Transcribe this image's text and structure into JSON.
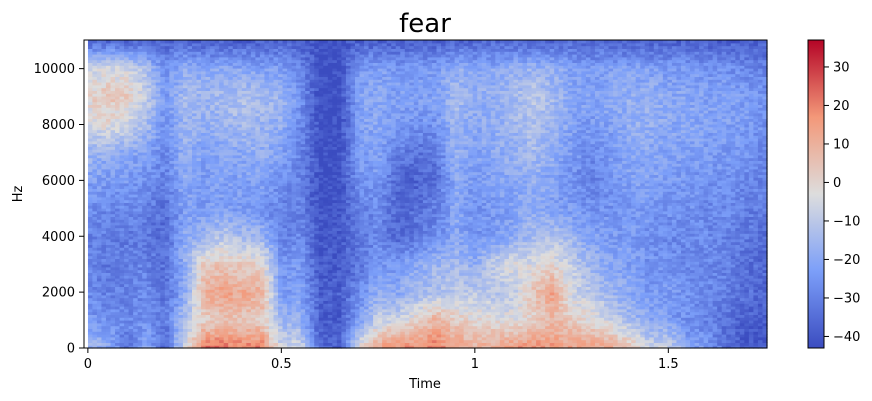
{
  "chart_data": [
    {
      "type": "heatmap",
      "subtype": "spectrogram",
      "title": "fear",
      "xlabel": "Time",
      "ylabel": "Hz",
      "xlim": [
        -0.01,
        1.755
      ],
      "ylim": [
        0,
        11025
      ],
      "x_ticks": [
        0,
        0.5,
        1,
        1.5
      ],
      "x_tick_labels": [
        "0",
        "0.5",
        "1",
        "1.5"
      ],
      "y_ticks": [
        0,
        2000,
        4000,
        6000,
        8000,
        10000
      ],
      "y_tick_labels": [
        "0",
        "2000",
        "4000",
        "6000",
        "8000",
        "10000"
      ],
      "colormap": "coolwarm",
      "colors": {
        "low": "#3b4cc0",
        "mid": "#dddddd",
        "high": "#b40426"
      },
      "time_columns": [
        0.0,
        0.05,
        0.1,
        0.15,
        0.2,
        0.25,
        0.3,
        0.35,
        0.4,
        0.45,
        0.5,
        0.55,
        0.6,
        0.65,
        0.7,
        0.75,
        0.8,
        0.85,
        0.9,
        0.95,
        1.0,
        1.05,
        1.1,
        1.15,
        1.2,
        1.25,
        1.3,
        1.35,
        1.4,
        1.45,
        1.5,
        1.55,
        1.6,
        1.65,
        1.7,
        1.75
      ],
      "freq_rows": [
        0,
        1000,
        2000,
        3000,
        4000,
        5000,
        6000,
        7000,
        8000,
        9000,
        10000,
        11000
      ],
      "values_db": [
        [
          -14,
          -18,
          -34,
          -20,
          -36,
          -5,
          24,
          22,
          20,
          20,
          -6,
          -5,
          -36,
          -38,
          -2,
          14,
          18,
          18,
          20,
          14,
          10,
          12,
          16,
          18,
          16,
          14,
          14,
          12,
          6,
          -6,
          -6,
          -20,
          -24,
          -34,
          -40,
          -40
        ],
        [
          -24,
          -26,
          -28,
          -26,
          -32,
          -12,
          0,
          4,
          4,
          2,
          -16,
          -18,
          -38,
          -40,
          -22,
          -8,
          -6,
          0,
          10,
          2,
          0,
          -2,
          -4,
          0,
          8,
          2,
          -2,
          -6,
          -14,
          -20,
          -22,
          -28,
          -30,
          -34,
          -38,
          -40
        ],
        [
          -28,
          -30,
          -30,
          -28,
          -34,
          -20,
          10,
          14,
          12,
          10,
          -24,
          -22,
          -38,
          -38,
          -28,
          -18,
          -20,
          -14,
          -12,
          -10,
          -10,
          -12,
          -8,
          4,
          14,
          -6,
          -10,
          -16,
          -20,
          -24,
          -24,
          -26,
          -28,
          -30,
          -34,
          -36
        ],
        [
          -30,
          -32,
          -30,
          -30,
          -34,
          -18,
          2,
          4,
          2,
          0,
          -26,
          -24,
          -40,
          -40,
          -32,
          -26,
          -24,
          -20,
          -16,
          -14,
          -18,
          -8,
          -4,
          -4,
          0,
          -8,
          -16,
          -20,
          -22,
          -26,
          -26,
          -28,
          -28,
          -30,
          -34,
          -36
        ],
        [
          -30,
          -30,
          -32,
          -32,
          -36,
          -20,
          -16,
          -10,
          -14,
          -16,
          -30,
          -28,
          -40,
          -40,
          -32,
          -28,
          -36,
          -32,
          -28,
          -20,
          -26,
          -24,
          -20,
          -14,
          -12,
          -16,
          -22,
          -24,
          -24,
          -26,
          -28,
          -28,
          -28,
          -30,
          -32,
          -34
        ],
        [
          -28,
          -28,
          -28,
          -30,
          -34,
          -22,
          -24,
          -22,
          -24,
          -26,
          -30,
          -30,
          -42,
          -42,
          -30,
          -28,
          -36,
          -34,
          -30,
          -20,
          -26,
          -24,
          -22,
          -18,
          -22,
          -24,
          -26,
          -26,
          -24,
          -24,
          -26,
          -26,
          -28,
          -28,
          -30,
          -32
        ],
        [
          -22,
          -24,
          -24,
          -26,
          -30,
          -20,
          -24,
          -22,
          -22,
          -22,
          -26,
          -30,
          -42,
          -42,
          -26,
          -24,
          -36,
          -38,
          -34,
          -20,
          -24,
          -22,
          -20,
          -18,
          -22,
          -26,
          -30,
          -26,
          -22,
          -22,
          -24,
          -24,
          -26,
          -26,
          -28,
          -30
        ],
        [
          -16,
          -18,
          -20,
          -22,
          -28,
          -18,
          -22,
          -20,
          -20,
          -18,
          -22,
          -30,
          -42,
          -42,
          -24,
          -22,
          -30,
          -34,
          -32,
          -18,
          -22,
          -20,
          -18,
          -14,
          -18,
          -24,
          -28,
          -24,
          -20,
          -20,
          -22,
          -22,
          -24,
          -24,
          -26,
          -28
        ],
        [
          -6,
          -2,
          -6,
          -14,
          -26,
          -16,
          -18,
          -16,
          -14,
          -16,
          -18,
          -28,
          -42,
          -42,
          -22,
          -20,
          -24,
          -26,
          -26,
          -16,
          -20,
          -18,
          -16,
          -12,
          -16,
          -22,
          -24,
          -22,
          -18,
          -18,
          -20,
          -20,
          -22,
          -22,
          -24,
          -26
        ],
        [
          0,
          4,
          2,
          -8,
          -24,
          -14,
          -16,
          -14,
          -12,
          -14,
          -16,
          -26,
          -42,
          -42,
          -22,
          -20,
          -22,
          -22,
          -22,
          -14,
          -18,
          -18,
          -14,
          -10,
          -14,
          -20,
          -22,
          -20,
          -18,
          -18,
          -20,
          -20,
          -22,
          -22,
          -24,
          -26
        ],
        [
          -8,
          -4,
          -6,
          -12,
          -26,
          -18,
          -20,
          -20,
          -20,
          -22,
          -22,
          -28,
          -42,
          -42,
          -24,
          -22,
          -24,
          -24,
          -24,
          -18,
          -20,
          -20,
          -18,
          -16,
          -18,
          -22,
          -24,
          -22,
          -22,
          -22,
          -24,
          -24,
          -26,
          -26,
          -28,
          -30
        ],
        [
          -36,
          -36,
          -36,
          -36,
          -38,
          -36,
          -38,
          -38,
          -38,
          -38,
          -38,
          -38,
          -42,
          -42,
          -38,
          -38,
          -38,
          -38,
          -38,
          -36,
          -36,
          -36,
          -36,
          -36,
          -36,
          -36,
          -36,
          -36,
          -38,
          -38,
          -38,
          -38,
          -38,
          -38,
          -38,
          -38
        ]
      ],
      "colorbar": {
        "range": [
          -43,
          37
        ],
        "ticks": [
          30,
          20,
          10,
          0,
          -10,
          -20,
          -30,
          -40
        ],
        "tick_labels": [
          "30",
          "20",
          "10",
          "0",
          "−10",
          "−20",
          "−30",
          "−40"
        ]
      }
    }
  ]
}
